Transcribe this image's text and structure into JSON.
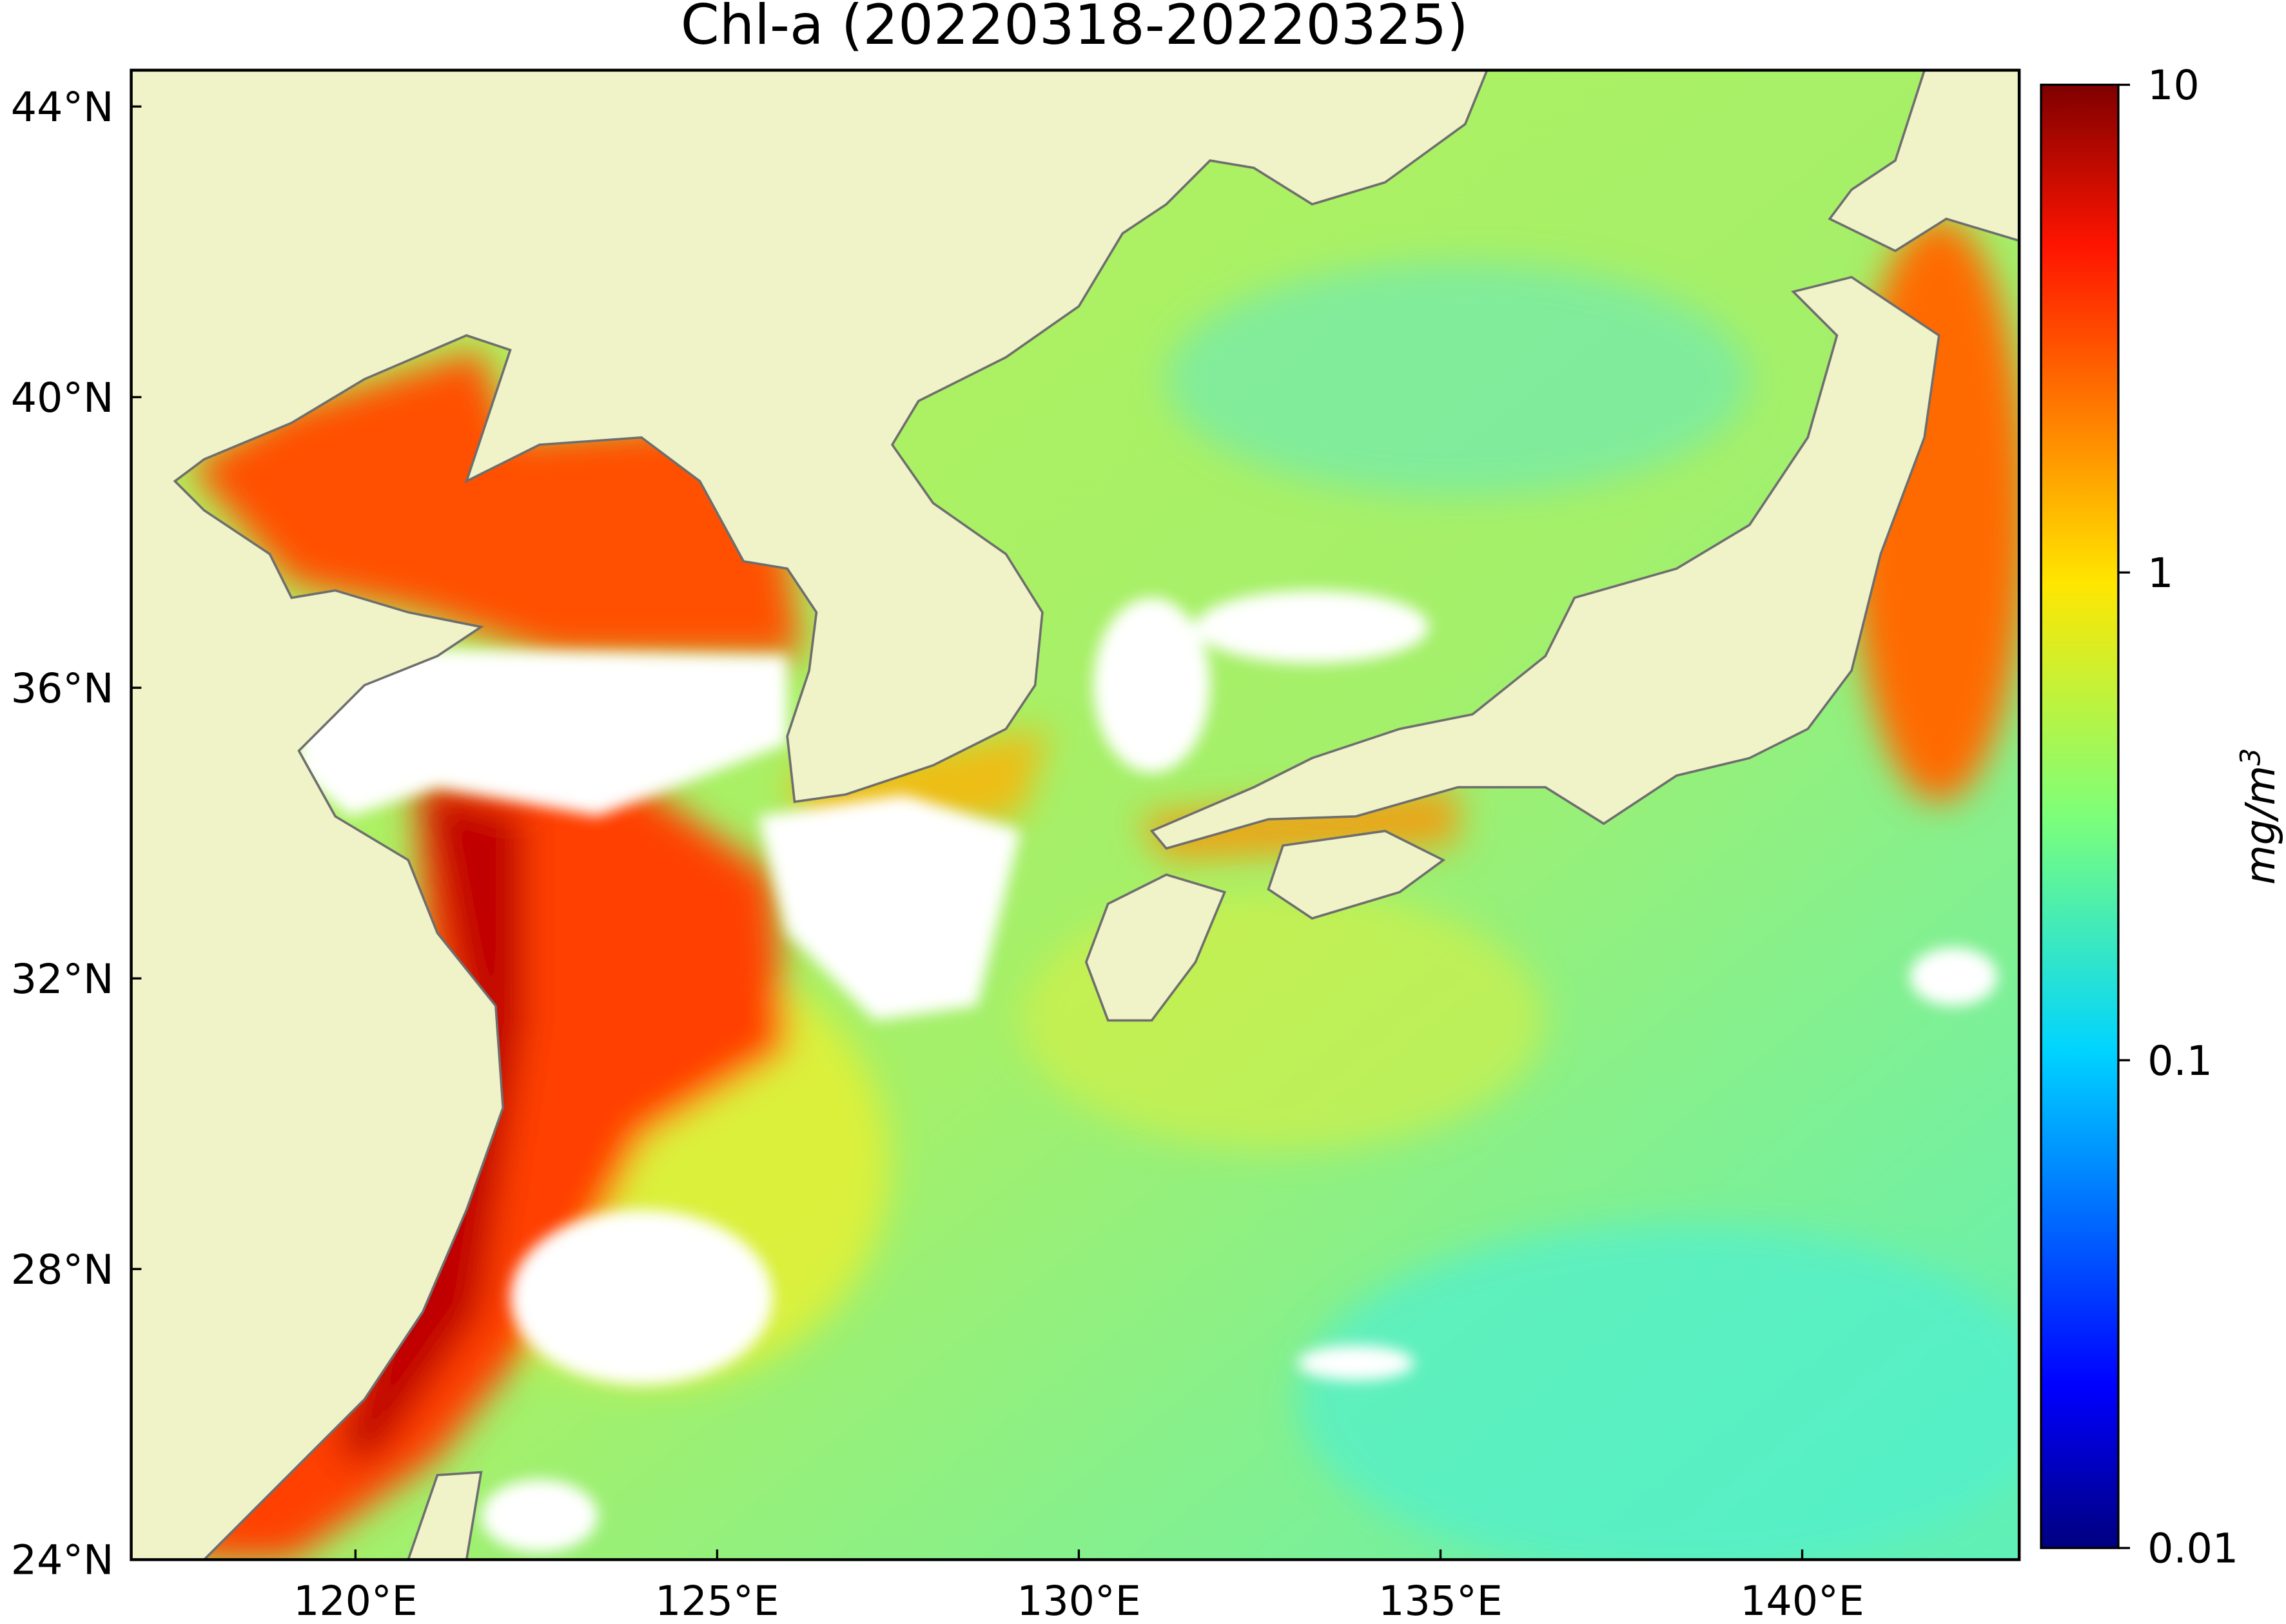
{
  "title": "Chl-a (20220318-20220325)",
  "lat_axis": {
    "lim": [
      24,
      44.5
    ],
    "ticks": [
      {
        "value": 24,
        "label": "24°N"
      },
      {
        "value": 28,
        "label": "28°N"
      },
      {
        "value": 32,
        "label": "32°N"
      },
      {
        "value": 36,
        "label": "36°N"
      },
      {
        "value": 40,
        "label": "40°N"
      },
      {
        "value": 44,
        "label": "44°N"
      }
    ]
  },
  "lon_axis": {
    "lim": [
      116.9,
      143
    ],
    "ticks": [
      {
        "value": 120,
        "label": "120°E"
      },
      {
        "value": 125,
        "label": "125°E"
      },
      {
        "value": 130,
        "label": "130°E"
      },
      {
        "value": 135,
        "label": "135°E"
      },
      {
        "value": 140,
        "label": "140°E"
      }
    ]
  },
  "colorbar": {
    "label": "mg/m",
    "label_exponent": "3",
    "scale": "log",
    "lim": [
      0.01,
      10
    ],
    "ticks": [
      0.01,
      0.1,
      1,
      10
    ]
  }
}
